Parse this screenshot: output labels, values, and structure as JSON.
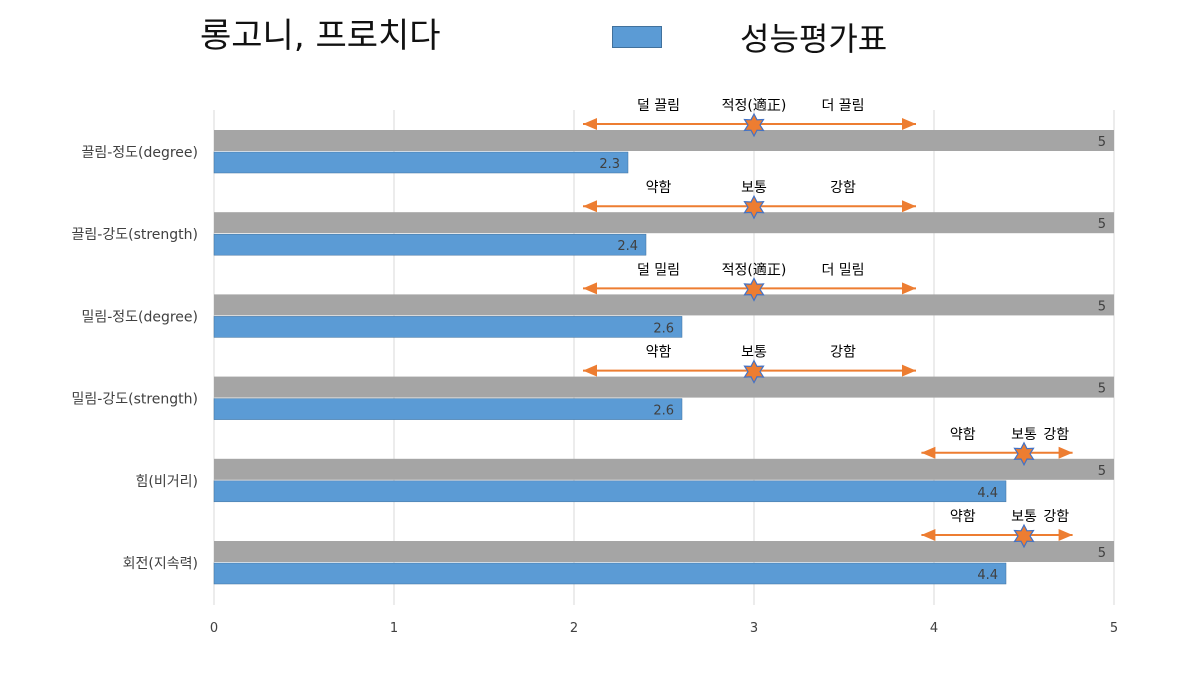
{
  "title": "롱고니, 프로치다",
  "legend": {
    "label": "성능평가표"
  },
  "colors": {
    "max_bar": "#a5a5a5",
    "score_bar": "#5b9bd5",
    "arrow": "#ed7d31",
    "star_fill": "#ed7d31",
    "star_stroke": "#4472c4",
    "grid": "#d9d9d9"
  },
  "chart_data": {
    "type": "bar",
    "orientation": "horizontal",
    "xlim": [
      0,
      5
    ],
    "x_ticks": [
      "0",
      "1",
      "2",
      "3",
      "4",
      "5"
    ],
    "grid": true,
    "legend_position": "top",
    "categories": [
      "끌림-정도(degree)",
      "끌림-강도(strength)",
      "밀림-정도(degree)",
      "밀림-강도(strength)",
      "힘(비거리)",
      "회전(지속력)"
    ],
    "series": [
      {
        "role": "max",
        "values": [
          5,
          5,
          5,
          5,
          5,
          5
        ]
      },
      {
        "name": "성능평가표",
        "values": [
          2.3,
          2.4,
          2.6,
          2.6,
          4.4,
          4.4
        ]
      }
    ],
    "annotations": [
      {
        "low": "덜 끌림",
        "mid": "적정(適正)",
        "high": "더 끌림",
        "range": [
          2.05,
          3.9
        ],
        "mark": 3
      },
      {
        "low": "약함",
        "mid": "보통",
        "high": "강함",
        "range": [
          2.05,
          3.9
        ],
        "mark": 3
      },
      {
        "low": "덜 밀림",
        "mid": "적정(適正)",
        "high": "더 밀림",
        "range": [
          2.05,
          3.9
        ],
        "mark": 3
      },
      {
        "low": "약함",
        "mid": "보통",
        "high": "강함",
        "range": [
          2.05,
          3.9
        ],
        "mark": 3
      },
      {
        "low": "약함",
        "mid": "보통",
        "high": "강함",
        "range": [
          3.93,
          4.77
        ],
        "mark": 4.5
      },
      {
        "low": "약함",
        "mid": "보통",
        "high": "강함",
        "range": [
          3.93,
          4.77
        ],
        "mark": 4.5
      }
    ]
  }
}
